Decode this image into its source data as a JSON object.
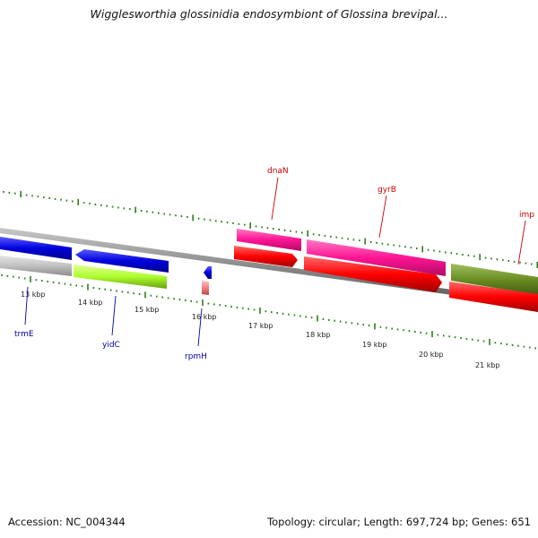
{
  "title": "Wigglesworthia glossinidia endosymbiont of Glossina brevipal...",
  "footer": {
    "accession": "Accession: NC_004344",
    "topology": "Topology: circular; Length: 697,724 bp; Genes: 651"
  },
  "colors": {
    "backbone": "#888888",
    "tick": "#2e7d1f",
    "label_above": "#cc0000",
    "label_below": "#0000aa"
  },
  "scale_labels": [
    "13 kbp",
    "14 kbp",
    "15 kbp",
    "16 kbp",
    "17 kbp",
    "18 kbp",
    "19 kbp",
    "20 kbp",
    "21 kbp"
  ],
  "genes": [
    {
      "name": "trmE",
      "label_color": "#0000aa",
      "color": "#0000dd",
      "strand": "minus"
    },
    {
      "name": "yidC",
      "label_color": "#0000aa",
      "color": "#0000dd",
      "strand": "minus"
    },
    {
      "name": "rpmH",
      "label_color": "#0000aa",
      "color": "#0000dd",
      "strand": "minus"
    },
    {
      "name": "dnaN",
      "label_color": "#cc0000",
      "color": "#ff1493",
      "strand": "plus"
    },
    {
      "name": "gyrB",
      "label_color": "#cc0000",
      "color": "#ff1493",
      "strand": "plus"
    },
    {
      "name": "imp",
      "label_color": "#cc0000",
      "color": "#6b8e23",
      "strand": "plus"
    }
  ],
  "cds_track_colors": {
    "cds": "#ff0000",
    "other": "#c0c0c0",
    "green": "#adff2f",
    "salmon": "#f08080"
  }
}
